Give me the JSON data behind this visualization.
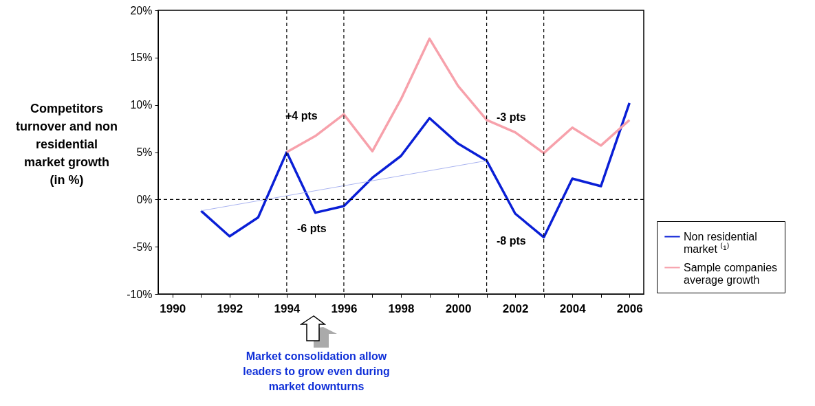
{
  "chart_data": {
    "type": "line",
    "ylabel": "Competitors turnover and non residential market growth (in %)",
    "x": [
      1991,
      1992,
      1993,
      1994,
      1995,
      1996,
      1997,
      1998,
      1999,
      2000,
      2001,
      2002,
      2003,
      2004,
      2005,
      2006
    ],
    "series": [
      {
        "name": "Non residential market ⁽¹⁾",
        "color": "#0a1fd6",
        "values": [
          -1.2,
          -3.9,
          -1.9,
          5.0,
          -1.4,
          -0.7,
          2.3,
          4.6,
          8.6,
          5.9,
          4.1,
          -1.5,
          -4.0,
          2.2,
          1.4,
          10.2
        ]
      },
      {
        "name": "Sample companies average growth",
        "color": "#f7a1ab",
        "values": [
          null,
          null,
          null,
          5.0,
          6.7,
          9.0,
          5.1,
          10.6,
          17.0,
          12.0,
          8.4,
          7.1,
          4.9,
          7.6,
          5.7,
          8.4
        ]
      },
      {
        "type": "line",
        "color": "#aab4f0",
        "x": [
          1991,
          2001
        ],
        "values": [
          -1.2,
          4.1
        ]
      }
    ],
    "xlim": [
      1989.5,
      2006.5
    ],
    "xticks": [
      1990,
      {
        "value": 1991,
        "label": null
      },
      1992,
      {
        "value": 1993,
        "label": null
      },
      1994,
      {
        "value": 1995,
        "label": null
      },
      1996,
      {
        "value": 1997,
        "label": null
      },
      1998,
      {
        "value": 1999,
        "label": null
      },
      2000,
      {
        "value": 2001,
        "label": null
      },
      2002,
      {
        "value": 2003,
        "label": null
      },
      2004,
      {
        "value": 2005,
        "label": null
      },
      2006
    ],
    "ylim": [
      -10,
      20
    ],
    "yticks": [
      {
        "value": -10,
        "label": "-10%"
      },
      {
        "value": -5,
        "label": "-5%"
      },
      {
        "value": 0,
        "label": "0%"
      },
      {
        "value": 5,
        "label": "5%"
      },
      {
        "value": 10,
        "label": "10%"
      },
      {
        "value": 15,
        "label": "15%"
      },
      {
        "value": 20,
        "label": "20%"
      }
    ],
    "ref_lines": [
      {
        "axis": "y",
        "value": 0,
        "color": "#000000",
        "line_style": "dashed"
      },
      {
        "axis": "x",
        "value": 1994,
        "color": "#000000",
        "line_style": "dashed"
      },
      {
        "axis": "x",
        "value": 1996,
        "color": "#000000",
        "line_style": "dashed"
      },
      {
        "axis": "x",
        "value": 2001,
        "color": "#000000",
        "line_style": "dashed"
      },
      {
        "axis": "x",
        "value": 2003,
        "color": "#000000",
        "line_style": "dashed"
      }
    ],
    "annotations": [
      "+4 pts",
      "-6 pts",
      "-3 pts",
      "-8 pts",
      "Market consolidation allow leaders to grow even during market downturns"
    ],
    "grid": false,
    "legend": "right",
    "marker": "none",
    "line_style": "solid"
  }
}
